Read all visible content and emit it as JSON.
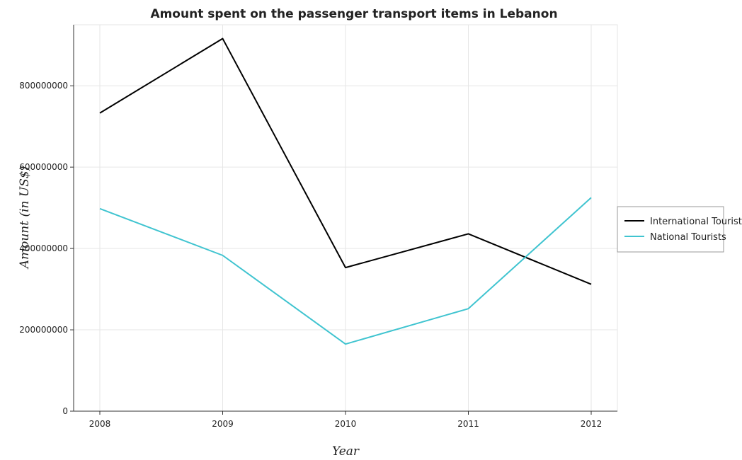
{
  "chart_data": {
    "type": "line",
    "title": "Amount spent on the passenger transport items in Lebanon",
    "xlabel": "Year",
    "ylabel": "Amount (in US$)",
    "categories": [
      "2008",
      "2009",
      "2010",
      "2011",
      "2012"
    ],
    "y_ticks": [
      0,
      200000000,
      400000000,
      600000000,
      800000000
    ],
    "y_tick_labels": [
      "0",
      "200000000",
      "400000000",
      "600000000",
      "800000000"
    ],
    "ylim": [
      0,
      950000000
    ],
    "grid": true,
    "legend_position": "right",
    "series": [
      {
        "name": "International Tourists",
        "color": "#000000",
        "values": [
          733000000,
          916000000,
          353000000,
          436000000,
          312000000
        ]
      },
      {
        "name": "National Tourists",
        "color": "#40c4d0",
        "values": [
          498000000,
          383000000,
          165000000,
          252000000,
          525000000
        ]
      }
    ]
  }
}
